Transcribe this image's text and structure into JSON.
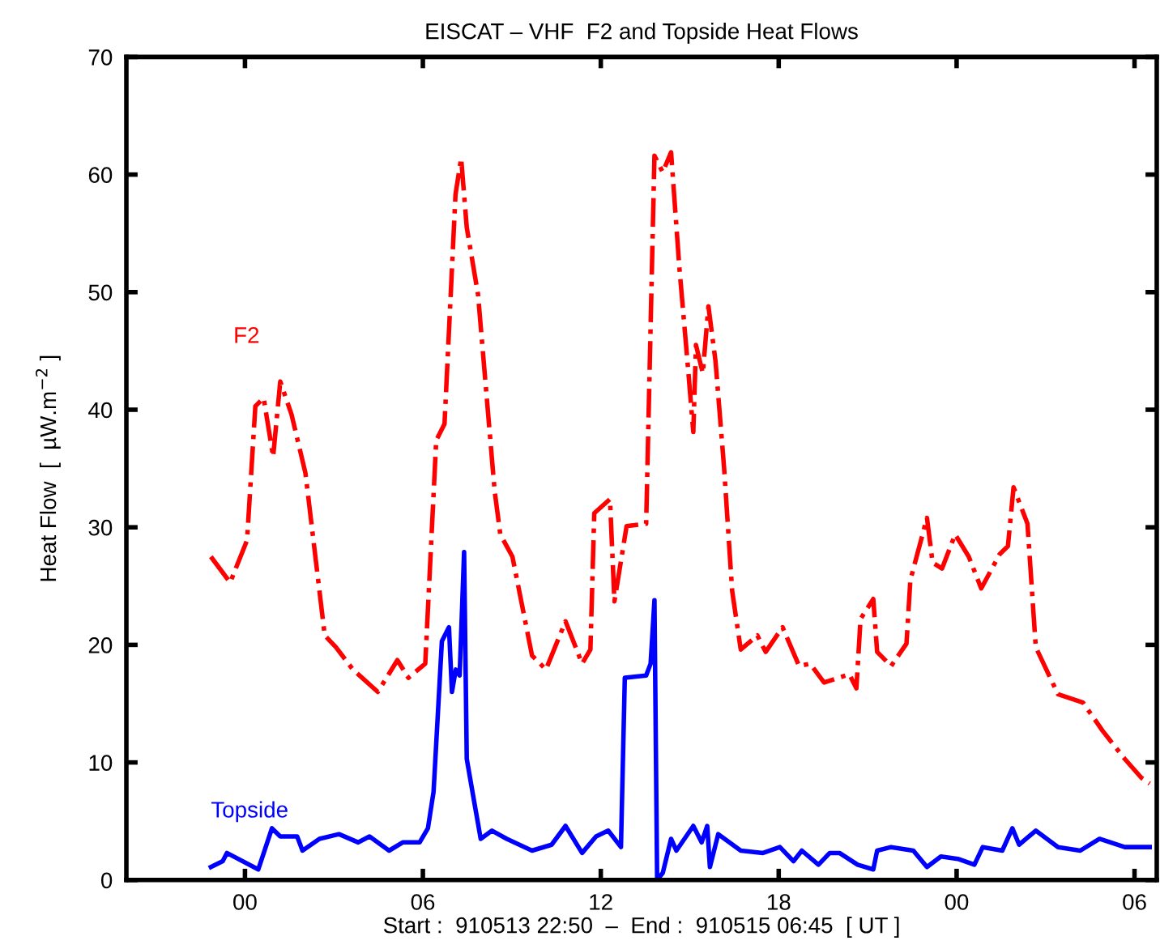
{
  "chart_data": {
    "type": "line",
    "title": "EISCAT – VHF  F2 and Topside Heat Flows",
    "xlabel": "Start :  910513 22:50  –  End :  910515 06:45  [ UT ]",
    "ylabel": "Heat Flow  [  µW.m$^{−2}$ ]",
    "xlim": [
      -4,
      30.75
    ],
    "ylim": [
      0,
      70
    ],
    "xticks": [
      {
        "value": 0,
        "label": "00"
      },
      {
        "value": 6,
        "label": "06"
      },
      {
        "value": 12,
        "label": "12"
      },
      {
        "value": 18,
        "label": "18"
      },
      {
        "value": 24,
        "label": "00"
      },
      {
        "value": 30,
        "label": "06"
      }
    ],
    "yticks": [
      0,
      10,
      20,
      30,
      40,
      50,
      60,
      70
    ],
    "grid": false,
    "legend": false,
    "marker": "none",
    "series": [
      {
        "name": "F2",
        "color": "#ff0000",
        "line_style": "dashdot",
        "x": [
          -1.15,
          -0.5,
          0.07,
          0.35,
          0.63,
          0.95,
          1.19,
          1.57,
          2.04,
          2.69,
          3.07,
          3.64,
          4.48,
          5.14,
          5.51,
          6.08,
          6.45,
          6.73,
          7.1,
          7.29,
          7.48,
          7.86,
          8.42,
          8.61,
          9.02,
          9.68,
          10.15,
          10.81,
          11.37,
          11.65,
          11.78,
          12.31,
          12.46,
          12.87,
          13.53,
          13.81,
          14.09,
          14.37,
          14.65,
          14.94,
          15.12,
          15.21,
          15.44,
          15.63,
          15.87,
          16.16,
          16.43,
          16.72,
          17.28,
          17.56,
          18.13,
          18.69,
          19.06,
          19.53,
          20.38,
          20.62,
          20.76,
          21.19,
          21.32,
          21.79,
          22.31,
          22.44,
          23.0,
          23.19,
          23.51,
          23.95,
          24.41,
          24.83,
          25.45,
          25.73,
          25.92,
          26.39,
          26.67,
          27.42,
          28.26,
          28.92,
          29.67,
          30.23,
          30.51
        ],
        "values": [
          27.5,
          25.3,
          28.9,
          40.3,
          41.0,
          36.0,
          42.4,
          39.6,
          34.6,
          20.8,
          19.8,
          17.9,
          16.0,
          18.7,
          17.2,
          18.4,
          37.4,
          38.8,
          58.3,
          61.4,
          55.5,
          49.8,
          33.1,
          29.4,
          27.5,
          19.1,
          17.9,
          22.0,
          18.4,
          19.6,
          31.2,
          32.4,
          23.7,
          30.1,
          30.3,
          61.6,
          60.2,
          61.9,
          52.1,
          43.6,
          38.1,
          45.5,
          43.1,
          48.8,
          44.1,
          35.0,
          24.6,
          19.6,
          20.8,
          19.4,
          21.5,
          18.2,
          18.4,
          16.8,
          17.5,
          16.3,
          22.2,
          23.9,
          19.4,
          18.2,
          20.1,
          25.5,
          30.8,
          27.0,
          26.5,
          29.4,
          27.5,
          24.8,
          27.7,
          28.4,
          33.4,
          30.3,
          19.8,
          15.8,
          15.1,
          12.7,
          10.3,
          8.7,
          8.2
        ]
      },
      {
        "name": "Topside",
        "color": "#0000ff",
        "line_style": "solid",
        "x": [
          -1.15,
          -0.75,
          -0.61,
          0.45,
          0.91,
          1.19,
          1.76,
          1.94,
          2.51,
          3.17,
          3.82,
          4.2,
          4.86,
          5.32,
          5.89,
          6.17,
          6.36,
          6.64,
          6.88,
          6.98,
          7.11,
          7.24,
          7.39,
          7.48,
          7.72,
          7.95,
          8.33,
          8.83,
          9.68,
          10.34,
          10.81,
          11.37,
          11.84,
          12.25,
          12.68,
          12.81,
          13.53,
          13.68,
          13.81,
          13.9,
          14.09,
          14.37,
          14.55,
          15.12,
          15.4,
          15.59,
          15.68,
          15.96,
          16.72,
          17.47,
          18.04,
          18.5,
          18.78,
          19.34,
          19.72,
          20.05,
          20.66,
          21.19,
          21.32,
          21.79,
          22.54,
          23.0,
          23.47,
          24.04,
          24.6,
          24.88,
          25.54,
          25.88,
          26.11,
          26.67,
          27.42,
          28.17,
          28.82,
          29.67,
          30.51
        ],
        "values": [
          1.1,
          1.6,
          2.3,
          0.9,
          4.4,
          3.7,
          3.7,
          2.5,
          3.5,
          3.9,
          3.2,
          3.7,
          2.5,
          3.2,
          3.2,
          4.4,
          7.5,
          20.3,
          21.5,
          16.0,
          17.9,
          17.4,
          27.9,
          10.3,
          6.8,
          3.5,
          4.2,
          3.5,
          2.5,
          3.0,
          4.6,
          2.3,
          3.7,
          4.2,
          2.8,
          17.2,
          17.4,
          18.4,
          23.8,
          0.0,
          0.6,
          3.5,
          2.5,
          4.6,
          3.2,
          4.6,
          1.1,
          3.9,
          2.5,
          2.3,
          2.8,
          1.6,
          2.5,
          1.3,
          2.3,
          2.3,
          1.3,
          0.9,
          2.5,
          2.8,
          2.5,
          1.1,
          2.0,
          1.8,
          1.3,
          2.8,
          2.5,
          4.4,
          3.0,
          4.2,
          2.8,
          2.5,
          3.5,
          2.8,
          2.8
        ]
      }
    ]
  }
}
